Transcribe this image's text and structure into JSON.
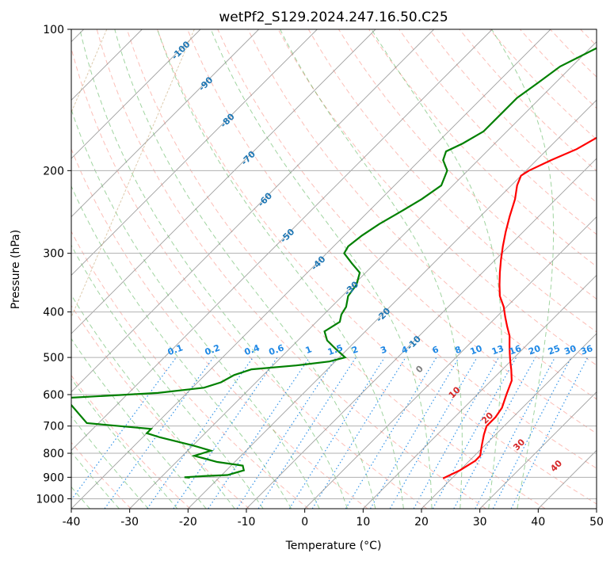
{
  "chart_data": {
    "type": "line",
    "chart_kind": "skew-t log-p",
    "title": "wetPf2_S129.2024.247.16.50.C25",
    "xlabel": "Temperature (°C)",
    "ylabel": "Pressure (hPa)",
    "xlim": [
      -40,
      50
    ],
    "ylim": [
      1050,
      100
    ],
    "y_scale": "log",
    "x_ticks": [
      "-40",
      "-30",
      "-20",
      "-10",
      "0",
      "10",
      "20",
      "30",
      "40",
      "50"
    ],
    "y_ticks": [
      "100",
      "200",
      "300",
      "400",
      "500",
      "600",
      "700",
      "800",
      "900",
      "1000"
    ],
    "grid": true,
    "colors": {
      "temperature": "#ff0000",
      "dewpoint": "#008000",
      "isotherm": "#808080",
      "dry_adiabat": "#fa8072",
      "moist_adiabat": "#2ca02c",
      "mixing_ratio": "#1e88e5",
      "isotherm_label": "#1f77b4",
      "theta_label": "#d62728"
    },
    "isotherm_labels": [
      "-100",
      "-90",
      "-80",
      "-70",
      "-60",
      "-50",
      "-40",
      "-30",
      "-20",
      "-10",
      "0",
      "10",
      "20",
      "30",
      "40"
    ],
    "mixing_ratio_labels": [
      "0.1",
      "0.2",
      "0.4",
      "0.6",
      "1",
      "1.5",
      "2",
      "3",
      "4",
      "6",
      "8",
      "10",
      "13",
      "16",
      "20",
      "25",
      "30",
      "36"
    ],
    "series": [
      {
        "key": "temperature",
        "points": [
          [
            18.5,
            905
          ],
          [
            20,
            870
          ],
          [
            21,
            830
          ],
          [
            21,
            810
          ],
          [
            19.5,
            770
          ],
          [
            18,
            730
          ],
          [
            17,
            700
          ],
          [
            17,
            670
          ],
          [
            16.5,
            640
          ],
          [
            15,
            600
          ],
          [
            13.5,
            560
          ],
          [
            11.5,
            530
          ],
          [
            10,
            510
          ],
          [
            8.5,
            490
          ],
          [
            7,
            470
          ],
          [
            5.5,
            450
          ],
          [
            3.5,
            430
          ],
          [
            1.5,
            410
          ],
          [
            -0.5,
            390
          ],
          [
            -3,
            370
          ],
          [
            -5,
            350
          ],
          [
            -7,
            330
          ],
          [
            -9,
            310
          ],
          [
            -11,
            290
          ],
          [
            -13,
            270
          ],
          [
            -15,
            250
          ],
          [
            -17,
            230
          ],
          [
            -19,
            215
          ],
          [
            -20,
            205
          ],
          [
            -19.5,
            200
          ],
          [
            -17.5,
            190
          ],
          [
            -15,
            180
          ],
          [
            -13.5,
            170
          ],
          [
            -12.5,
            160
          ],
          [
            -11.5,
            150
          ],
          [
            -11,
            140
          ],
          [
            -11.5,
            130
          ],
          [
            -12.5,
            120
          ],
          [
            -14,
            110
          ],
          [
            -15,
            105
          ],
          [
            -15.5,
            100
          ]
        ]
      },
      {
        "key": "dewpoint",
        "points": [
          [
            -25,
            902
          ],
          [
            -26,
            900
          ],
          [
            -23,
            895
          ],
          [
            -19,
            890
          ],
          [
            -17,
            870
          ],
          [
            -18,
            850
          ],
          [
            -23,
            835
          ],
          [
            -28,
            810
          ],
          [
            -26,
            790
          ],
          [
            -30,
            770
          ],
          [
            -37,
            740
          ],
          [
            -40,
            725
          ],
          [
            -40,
            710
          ],
          [
            -52,
            690
          ],
          [
            -60,
            610
          ],
          [
            -45,
            595
          ],
          [
            -38,
            580
          ],
          [
            -36,
            565
          ],
          [
            -35,
            545
          ],
          [
            -33,
            530
          ],
          [
            -26,
            520
          ],
          [
            -21,
            510
          ],
          [
            -19,
            500
          ],
          [
            -22,
            480
          ],
          [
            -25,
            460
          ],
          [
            -27,
            440
          ],
          [
            -26,
            420
          ],
          [
            -27,
            405
          ],
          [
            -27.5,
            390
          ],
          [
            -29,
            370
          ],
          [
            -29.5,
            350
          ],
          [
            -31,
            330
          ],
          [
            -34,
            315
          ],
          [
            -37,
            300
          ],
          [
            -37.5,
            290
          ],
          [
            -37,
            275
          ],
          [
            -36,
            260
          ],
          [
            -34.5,
            245
          ],
          [
            -33,
            230
          ],
          [
            -32,
            215
          ],
          [
            -33.5,
            200
          ],
          [
            -36,
            190
          ],
          [
            -37,
            182
          ],
          [
            -35.5,
            175
          ],
          [
            -34,
            165
          ],
          [
            -34,
            150
          ],
          [
            -34,
            140
          ],
          [
            -33,
            130
          ],
          [
            -32,
            120
          ],
          [
            -29,
            110
          ],
          [
            -25,
            100
          ]
        ]
      }
    ]
  }
}
